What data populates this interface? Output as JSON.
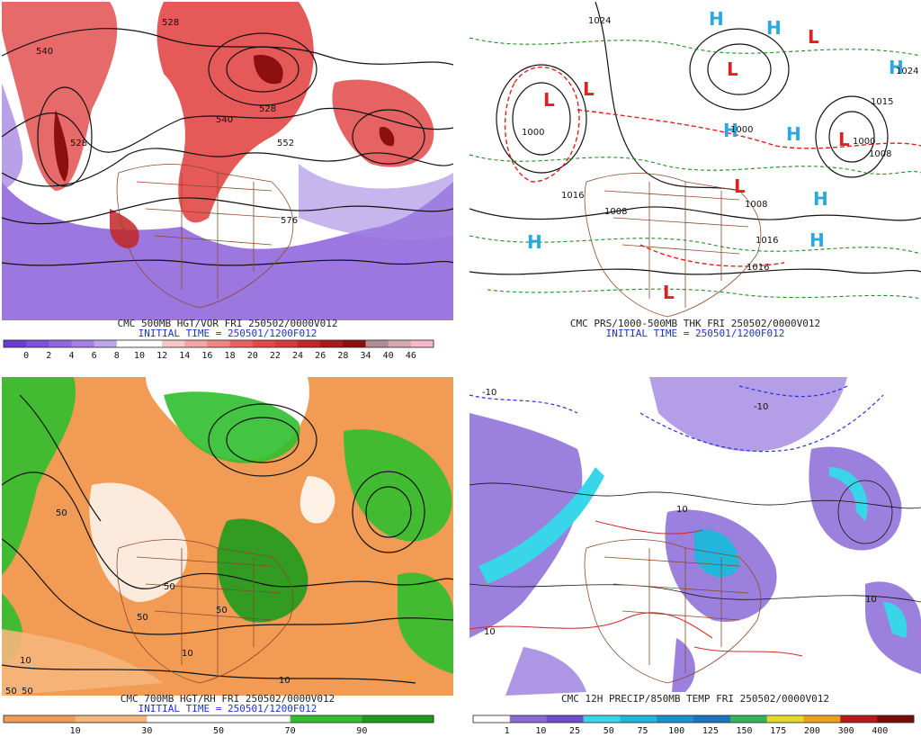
{
  "panels": [
    {
      "id": "p1",
      "caption_line1": "CMC 500MB HGT/VOR FRI 250502/0000V012",
      "caption_line2": "INITIAL TIME = 250501/1200F012",
      "colorbar_labels": [
        "0",
        "2",
        "4",
        "6",
        "8",
        "10",
        "12",
        "14",
        "16",
        "18",
        "20",
        "22",
        "24",
        "26",
        "28",
        "34",
        "40",
        "46"
      ],
      "colorbar_colors": [
        "#6a3dd1",
        "#7d52d8",
        "#9067dc",
        "#a47ee3",
        "#bda7ea",
        "#ffffff",
        "#ffffff",
        "#f7c8c8",
        "#f4a6a6",
        "#ef8585",
        "#e96262",
        "#e24848",
        "#d73a3a",
        "#c22626",
        "#a81a1a",
        "#8c0f0f",
        "#b28d94",
        "#d7a8b0",
        "#f4b8c8"
      ],
      "map_labels": [
        "528",
        "540",
        "528",
        "552",
        "528",
        "576",
        "540"
      ]
    },
    {
      "id": "p2",
      "caption_line1": "CMC PRS/1000-500MB THK FRI 250502/0000V012",
      "caption_line2": "INITIAL TIME = 250501/1200F012",
      "high_low": [
        "L",
        "L",
        "L",
        "L",
        "L",
        "L",
        "L",
        "H",
        "H",
        "H",
        "H",
        "H",
        "H",
        "H",
        "H"
      ],
      "pressure_labels": [
        "1024",
        "1000",
        "1016",
        "1008",
        "1008",
        "1016",
        "1016",
        "1000",
        "1015",
        "1008",
        "1024",
        "1000"
      ],
      "colors": {
        "low": "#e02020",
        "high": "#2aa8e0"
      }
    },
    {
      "id": "p3",
      "caption_line1": "CMC 700MB HGT/RH FRI 250502/0000V012",
      "caption_line2": "INITIAL TIME = 250501/1200F012",
      "colorbar_labels": [
        "10",
        "30",
        "50",
        "70",
        "90"
      ],
      "colorbar_colors": [
        "#f19b54",
        "#f5b67c",
        "#ffffff",
        "#ffffff",
        "#2fbf2f",
        "#1c9c1c"
      ],
      "map_labels": [
        "50",
        "10",
        "50",
        "50",
        "10",
        "10",
        "50",
        "50",
        "50"
      ]
    },
    {
      "id": "p4",
      "caption_line1": "CMC 12H PRECIP/850MB TEMP FRI 250502/0000V012",
      "colorbar_labels": [
        "1",
        "10",
        "25",
        "50",
        "75",
        "100",
        "125",
        "150",
        "175",
        "200",
        "300",
        "400"
      ],
      "colorbar_colors": [
        "#ffffff",
        "#8a6ad8",
        "#6a4ccc",
        "#39d5e8",
        "#22b6dd",
        "#1a8fd1",
        "#1a74c4",
        "#30b45c",
        "#e4d92a",
        "#f0a01c",
        "#b81a1a",
        "#7a0a0a"
      ],
      "map_labels": [
        "-10",
        "10",
        "10",
        "-10",
        "10"
      ]
    }
  ]
}
